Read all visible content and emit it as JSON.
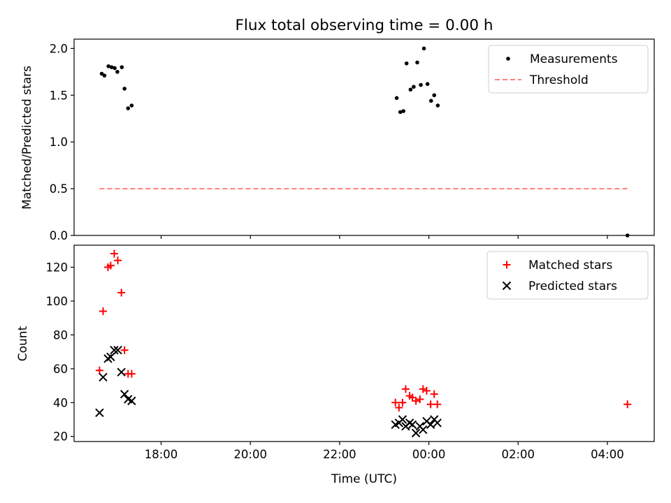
{
  "chart_data": [
    {
      "type": "scatter",
      "title": "Flux total observing time = 0.00 h",
      "xlabel": "",
      "ylabel": "Matched/Predicted stars",
      "xlim": [
        16.05,
        29.05
      ],
      "ylim": [
        0.0,
        2.1
      ],
      "yticks": [
        {
          "value": 0.0,
          "label": "0.0"
        },
        {
          "value": 0.5,
          "label": "0.5"
        },
        {
          "value": 1.0,
          "label": "1.0"
        },
        {
          "value": 1.5,
          "label": "1.5"
        },
        {
          "value": 2.0,
          "label": "2.0"
        }
      ],
      "legend": {
        "position": "top-right",
        "entries": [
          "Measurements",
          "Threshold"
        ]
      },
      "series": [
        {
          "name": "Measurements",
          "marker": "dot",
          "color": "#000000",
          "points": [
            {
              "x": 16.67,
              "y": 1.73
            },
            {
              "x": 16.73,
              "y": 1.71
            },
            {
              "x": 16.82,
              "y": 1.81
            },
            {
              "x": 16.89,
              "y": 1.8
            },
            {
              "x": 16.96,
              "y": 1.79
            },
            {
              "x": 17.02,
              "y": 1.75
            },
            {
              "x": 17.12,
              "y": 1.8
            },
            {
              "x": 17.18,
              "y": 1.57
            },
            {
              "x": 17.26,
              "y": 1.36
            },
            {
              "x": 17.34,
              "y": 1.39
            },
            {
              "x": 23.28,
              "y": 1.47
            },
            {
              "x": 23.36,
              "y": 1.32
            },
            {
              "x": 23.43,
              "y": 1.33
            },
            {
              "x": 23.5,
              "y": 1.84
            },
            {
              "x": 23.59,
              "y": 1.56
            },
            {
              "x": 23.66,
              "y": 1.59
            },
            {
              "x": 23.74,
              "y": 1.85
            },
            {
              "x": 23.82,
              "y": 1.61
            },
            {
              "x": 23.89,
              "y": 2.0
            },
            {
              "x": 23.97,
              "y": 1.62
            },
            {
              "x": 24.05,
              "y": 1.44
            },
            {
              "x": 24.12,
              "y": 1.5
            },
            {
              "x": 24.2,
              "y": 1.39
            },
            {
              "x": 28.45,
              "y": 0.0
            }
          ]
        },
        {
          "name": "Threshold",
          "marker": "dashed-line",
          "color": "#ff7f7f",
          "points": [
            {
              "x": 16.62,
              "y": 0.5
            },
            {
              "x": 28.45,
              "y": 0.5
            }
          ]
        }
      ]
    },
    {
      "type": "scatter",
      "title": "",
      "xlabel": "Time (UTC)",
      "ylabel": "Count",
      "xlim": [
        16.05,
        29.05
      ],
      "ylim": [
        17,
        133
      ],
      "xticks": [
        {
          "value": 18,
          "label": "18:00"
        },
        {
          "value": 20,
          "label": "20:00"
        },
        {
          "value": 22,
          "label": "22:00"
        },
        {
          "value": 24,
          "label": "00:00"
        },
        {
          "value": 26,
          "label": "02:00"
        },
        {
          "value": 28,
          "label": "04:00"
        }
      ],
      "yticks": [
        {
          "value": 20,
          "label": "20"
        },
        {
          "value": 40,
          "label": "40"
        },
        {
          "value": 60,
          "label": "60"
        },
        {
          "value": 80,
          "label": "80"
        },
        {
          "value": 100,
          "label": "100"
        },
        {
          "value": 120,
          "label": "120"
        }
      ],
      "legend": {
        "position": "top-right",
        "entries": [
          "Matched stars",
          "Predicted stars"
        ]
      },
      "series": [
        {
          "name": "Matched stars",
          "marker": "plus",
          "color": "#ff0000",
          "points": [
            {
              "x": 16.62,
              "y": 59
            },
            {
              "x": 16.7,
              "y": 94
            },
            {
              "x": 16.81,
              "y": 120
            },
            {
              "x": 16.87,
              "y": 121
            },
            {
              "x": 16.95,
              "y": 128
            },
            {
              "x": 17.03,
              "y": 124
            },
            {
              "x": 17.11,
              "y": 105
            },
            {
              "x": 17.18,
              "y": 71
            },
            {
              "x": 17.26,
              "y": 57
            },
            {
              "x": 17.34,
              "y": 57
            },
            {
              "x": 23.25,
              "y": 40
            },
            {
              "x": 23.33,
              "y": 37
            },
            {
              "x": 23.41,
              "y": 40
            },
            {
              "x": 23.48,
              "y": 48
            },
            {
              "x": 23.57,
              "y": 44
            },
            {
              "x": 23.63,
              "y": 43
            },
            {
              "x": 23.71,
              "y": 41
            },
            {
              "x": 23.8,
              "y": 42
            },
            {
              "x": 23.87,
              "y": 48
            },
            {
              "x": 23.95,
              "y": 47
            },
            {
              "x": 24.04,
              "y": 39
            },
            {
              "x": 24.12,
              "y": 45
            },
            {
              "x": 24.19,
              "y": 39
            },
            {
              "x": 28.45,
              "y": 39
            }
          ]
        },
        {
          "name": "Predicted stars",
          "marker": "x",
          "color": "#000000",
          "points": [
            {
              "x": 16.62,
              "y": 34
            },
            {
              "x": 16.7,
              "y": 55
            },
            {
              "x": 16.81,
              "y": 66
            },
            {
              "x": 16.87,
              "y": 67
            },
            {
              "x": 16.95,
              "y": 71
            },
            {
              "x": 17.03,
              "y": 71
            },
            {
              "x": 17.11,
              "y": 58
            },
            {
              "x": 17.18,
              "y": 45
            },
            {
              "x": 17.26,
              "y": 42
            },
            {
              "x": 17.34,
              "y": 41
            },
            {
              "x": 23.25,
              "y": 27
            },
            {
              "x": 23.33,
              "y": 28
            },
            {
              "x": 23.41,
              "y": 30
            },
            {
              "x": 23.48,
              "y": 26
            },
            {
              "x": 23.57,
              "y": 28
            },
            {
              "x": 23.63,
              "y": 27
            },
            {
              "x": 23.71,
              "y": 22
            },
            {
              "x": 23.8,
              "y": 26
            },
            {
              "x": 23.87,
              "y": 24
            },
            {
              "x": 23.95,
              "y": 29
            },
            {
              "x": 24.04,
              "y": 27
            },
            {
              "x": 24.12,
              "y": 30
            },
            {
              "x": 24.19,
              "y": 28
            }
          ]
        }
      ]
    }
  ]
}
